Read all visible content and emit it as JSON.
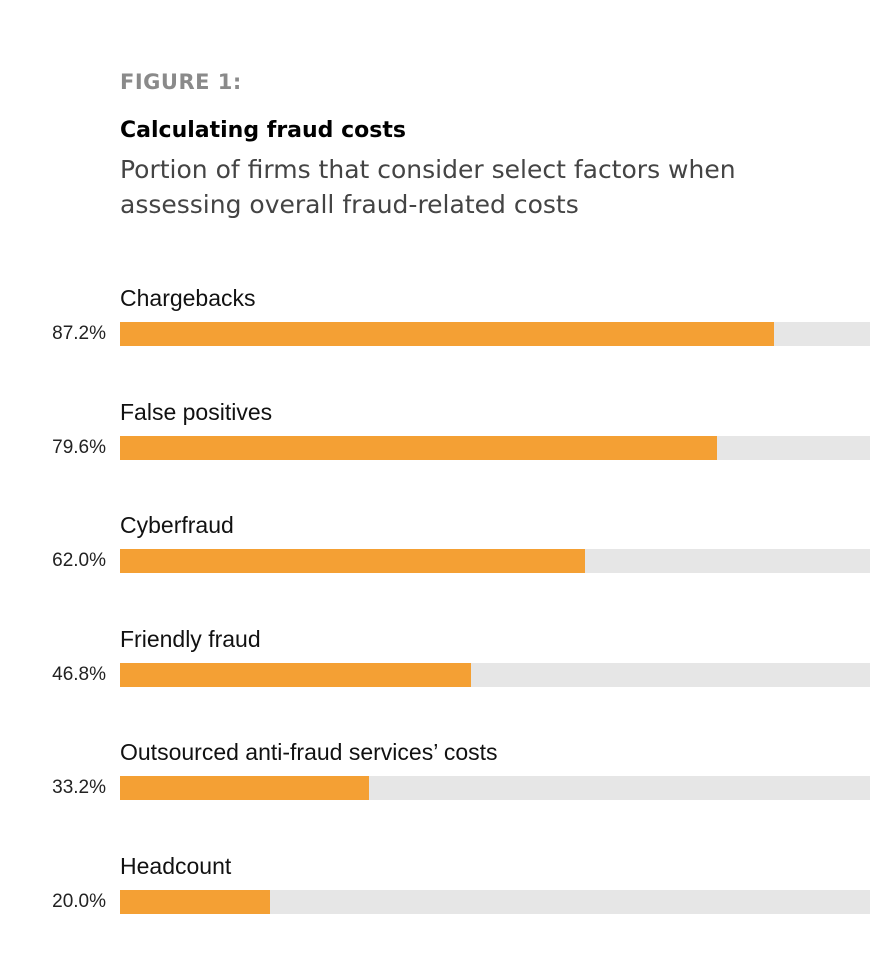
{
  "figure_label": "FIGURE 1:",
  "colors": {
    "bar": "#f4a034",
    "track": "#e6e6e6",
    "figure_label": "#8a8a8a"
  },
  "chart_data": {
    "type": "bar",
    "orientation": "horizontal",
    "title": "Calculating fraud costs",
    "subtitle": "Portion of firms that consider select factors when assessing overall fraud-related costs",
    "xlabel": "",
    "ylabel": "",
    "xlim": [
      0,
      100
    ],
    "unit": "%",
    "categories": [
      "Chargebacks",
      "False positives",
      "Cyberfraud",
      "Friendly fraud",
      "Outsourced anti-fraud services’ costs",
      "Headcount"
    ],
    "values": [
      87.2,
      79.6,
      62.0,
      46.8,
      33.2,
      20.0
    ],
    "value_labels": [
      "87.2%",
      "79.6%",
      "62.0%",
      "46.8%",
      "33.2%",
      "20.0%"
    ]
  }
}
